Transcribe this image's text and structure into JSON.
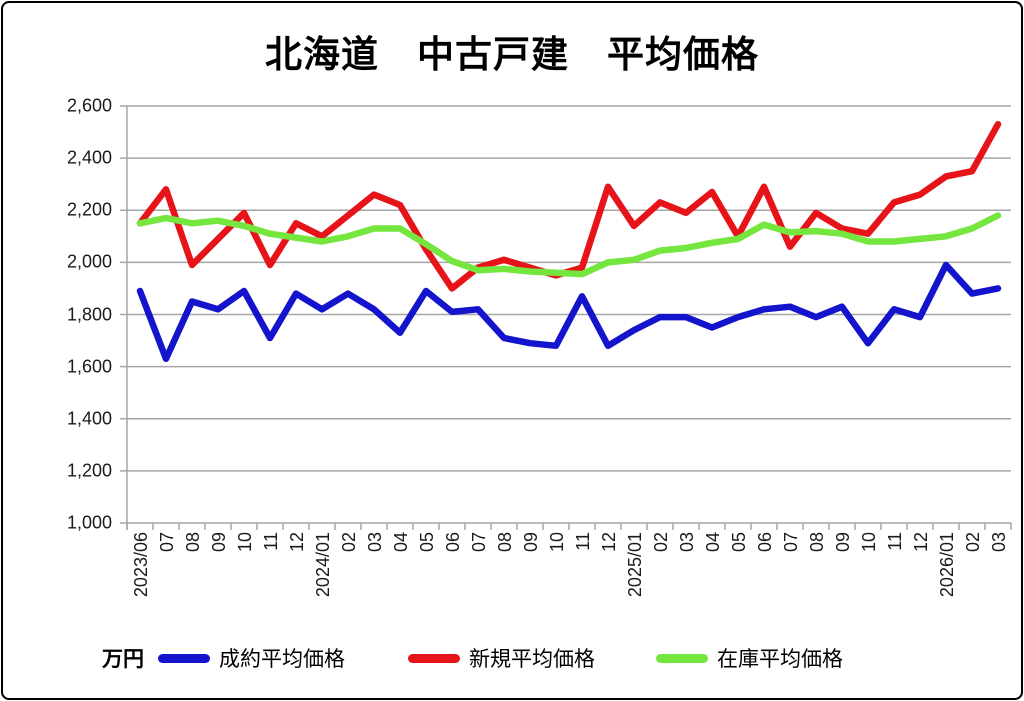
{
  "title": "北海道　中古戸建　平均価格",
  "unit_label": "万円",
  "colors": {
    "grid": "#a6a6a6",
    "axis_text": "#1a1a1a"
  },
  "chart_data": {
    "type": "line",
    "title": "北海道　中古戸建　平均価格",
    "ylabel": "万円",
    "ylim": [
      1000,
      2600
    ],
    "y_tick_step": 200,
    "y_tick_labels": [
      "1,000",
      "1,200",
      "1,400",
      "1,600",
      "1,800",
      "2,000",
      "2,200",
      "2,400",
      "2,600"
    ],
    "grid": true,
    "legend_position": "bottom",
    "categories": [
      "2023/06",
      "07",
      "08",
      "09",
      "10",
      "11",
      "12",
      "2024/01",
      "02",
      "03",
      "04",
      "05",
      "06",
      "07",
      "08",
      "09",
      "10",
      "11",
      "12",
      "2025/01",
      "02",
      "03",
      "04",
      "05",
      "06",
      "07",
      "08",
      "09",
      "10",
      "11",
      "12",
      "2026/01",
      "02",
      "03"
    ],
    "series": [
      {
        "name": "成約平均価格",
        "color": "#1414cc",
        "values": [
          1890,
          1630,
          1850,
          1820,
          1890,
          1710,
          1880,
          1820,
          1880,
          1820,
          1730,
          1890,
          1810,
          1820,
          1710,
          1690,
          1680,
          1870,
          1680,
          1740,
          1790,
          1790,
          1750,
          1790,
          1820,
          1830,
          1790,
          1830,
          1690,
          1820,
          1790,
          1990,
          1880,
          1900
        ]
      },
      {
        "name": "新規平均価格",
        "color": "#e61318",
        "values": [
          2150,
          2280,
          1990,
          2090,
          2190,
          1990,
          2150,
          2100,
          2180,
          2260,
          2220,
          2050,
          1900,
          1980,
          2010,
          1980,
          1950,
          1980,
          2290,
          2140,
          2230,
          2190,
          2270,
          2100,
          2290,
          2060,
          2190,
          2130,
          2110,
          2230,
          2260,
          2330,
          2350,
          2530
        ]
      },
      {
        "name": "在庫平均価格",
        "color": "#74e63e",
        "values": [
          2150,
          2170,
          2150,
          2160,
          2140,
          2110,
          2095,
          2080,
          2100,
          2130,
          2130,
          2070,
          2005,
          1970,
          1975,
          1965,
          1960,
          1955,
          2000,
          2010,
          2045,
          2055,
          2075,
          2090,
          2145,
          2115,
          2120,
          2110,
          2080,
          2080,
          2090,
          2100,
          2130,
          2180
        ]
      }
    ]
  }
}
